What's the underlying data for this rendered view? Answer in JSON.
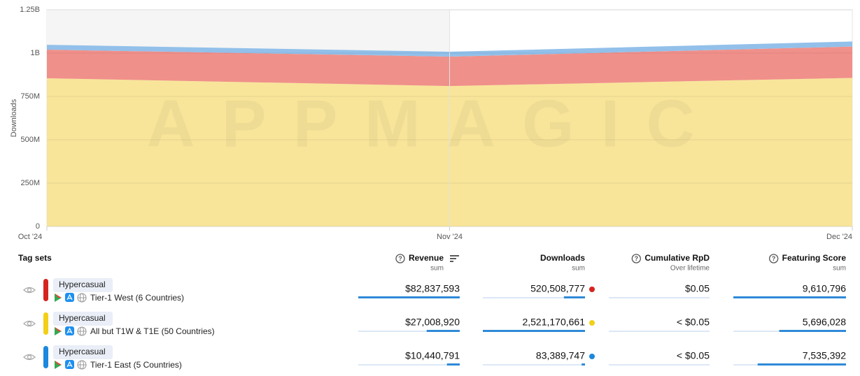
{
  "chart_data": {
    "type": "area",
    "stacked": true,
    "y_label": "Downloads",
    "watermark": "APPMAGIC",
    "categories": [
      "Oct '24",
      "Nov '24",
      "Dec '24"
    ],
    "series": [
      {
        "color": "#f8e59a",
        "values": [
          855000000,
          810000000,
          857000000
        ]
      },
      {
        "color": "#f0908a",
        "values": [
          165000000,
          170000000,
          181000000
        ]
      },
      {
        "color": "#92c0ea",
        "values": [
          28000000,
          28000000,
          29000000
        ]
      }
    ],
    "ylim": [
      0,
      1250000000
    ],
    "yticks": [
      0,
      {
        "value": 250000000,
        "label": "250M"
      },
      {
        "value": 500000000,
        "label": "500M"
      },
      {
        "value": 750000000,
        "label": "750M"
      },
      {
        "value": 1000000000,
        "label": "1B"
      },
      {
        "value": 1250000000,
        "label": "1.25B"
      }
    ],
    "grid": true
  },
  "table": {
    "header": [
      {
        "title": "Tag sets"
      },
      {
        "title": "Revenue",
        "sub": "sum"
      },
      {
        "title": "Downloads",
        "sub": "sum"
      },
      {
        "title": "Cumulative RpD",
        "sub": "Over lifetime"
      },
      {
        "title": "Featuring Score",
        "sub": "sum"
      }
    ],
    "rows": [
      {
        "tag": "Hypercasual",
        "name": "Tier-1 West (6 Countries)",
        "color": "#d42420",
        "cells": [
          {
            "value": 82837593,
            "label": "$82,837,593"
          },
          {
            "value": 520508777,
            "label": "520,508,777"
          },
          "$0.05",
          {
            "value": 9610796,
            "label": "9,610,796"
          }
        ]
      },
      {
        "tag": "Hypercasual",
        "name": "All but T1W & T1E (50 Countries)",
        "color": "#f2cf18",
        "cells": [
          {
            "value": 27008920,
            "label": "$27,008,920"
          },
          {
            "value": 2521170661,
            "label": "2,521,170,661"
          },
          "< $0.05",
          {
            "value": 5696028,
            "label": "5,696,028"
          }
        ]
      },
      {
        "tag": "Hypercasual",
        "name": "Tier-1 East (5 Countries)",
        "color": "#1c88de",
        "cells": [
          {
            "value": 10440791,
            "label": "$10,440,791"
          },
          {
            "value": 83389747,
            "label": "83,389,747"
          },
          "< $0.05",
          {
            "value": 7535392,
            "label": "7,535,392"
          }
        ]
      }
    ]
  }
}
